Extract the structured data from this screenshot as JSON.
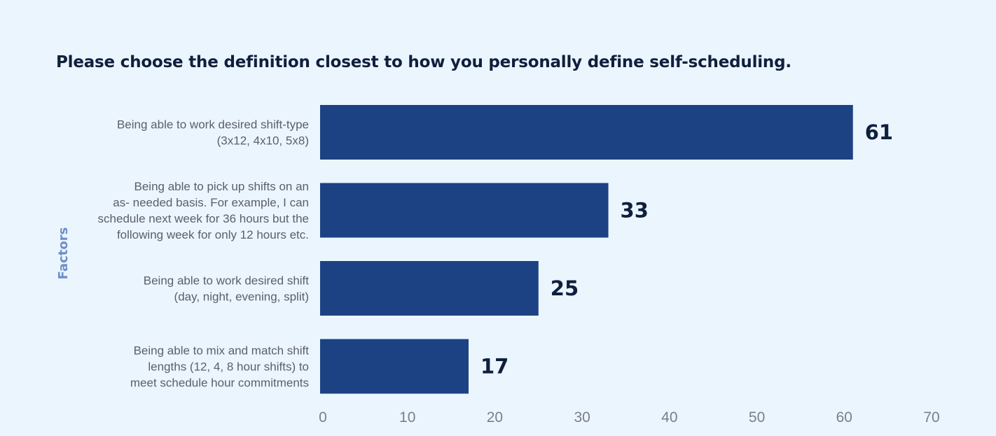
{
  "chart_data": {
    "type": "bar",
    "orientation": "horizontal",
    "title": "Please choose the definition closest to how you personally define self-scheduling.",
    "ylabel": "Factors",
    "xlabel": "",
    "xlim": [
      0,
      70
    ],
    "ticks": [
      "0",
      "10",
      "20",
      "30",
      "40",
      "50",
      "60",
      "70"
    ],
    "categories": [
      [
        "Being able to work desired shift-type",
        "(3x12, 4x10, 5x8)"
      ],
      [
        "Being able to pick up shifts on an",
        "as- needed basis. For example, I can",
        "schedule next week for 36 hours but the",
        "following week for only 12 hours etc."
      ],
      [
        "Being able to work desired shift",
        "(day, night, evening, split)"
      ],
      [
        "Being able to mix and match shift",
        "lengths (12, 4, 8 hour shifts) to",
        "meet schedule hour commitments"
      ]
    ],
    "values": [
      61,
      33,
      25,
      17
    ],
    "value_labels": [
      "61",
      "33",
      "25",
      "17"
    ],
    "bar_color": "#1c4283",
    "grid": false,
    "legend": "none"
  }
}
